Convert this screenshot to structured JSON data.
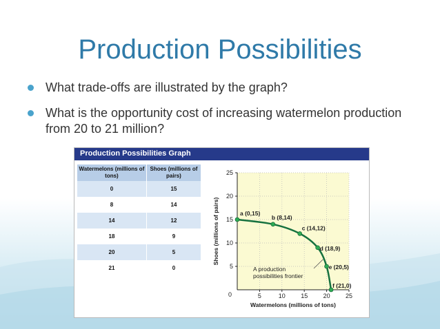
{
  "slide": {
    "title": "Production Possibilities",
    "bullets": [
      "What trade-offs are illustrated by the graph?",
      "What is the opportunity cost of increasing watermelon production from 20 to 21 million?"
    ]
  },
  "figure": {
    "header": "Production Possibilities Graph",
    "table": {
      "headers": [
        "Watermelons (millions of tons)",
        "Shoes (millions of pairs)"
      ],
      "rows": [
        [
          "0",
          "15"
        ],
        [
          "8",
          "14"
        ],
        [
          "14",
          "12"
        ],
        [
          "18",
          "9"
        ],
        [
          "20",
          "5"
        ],
        [
          "21",
          "0"
        ]
      ]
    }
  },
  "chart_data": {
    "type": "line",
    "xlabel": "Watermelons (millions of tons)",
    "ylabel": "Shoes (millions of pairs)",
    "xlim": [
      0,
      25
    ],
    "ylim": [
      0,
      25
    ],
    "xticks": [
      "5",
      "10",
      "15",
      "20",
      "25"
    ],
    "yticks": [
      "5",
      "10",
      "15",
      "20",
      "25"
    ],
    "origin_label": "0",
    "points": [
      {
        "label": "a (0,15)",
        "x": 0,
        "y": 15
      },
      {
        "label": "b (8,14)",
        "x": 8,
        "y": 14
      },
      {
        "label": "c (14,12)",
        "x": 14,
        "y": 12
      },
      {
        "label": "d (18,9)",
        "x": 18,
        "y": 9
      },
      {
        "label": "e (20,5)",
        "x": 20,
        "y": 5
      },
      {
        "label": "f (21,0)",
        "x": 21,
        "y": 0
      }
    ],
    "annotation": [
      "A production",
      "possibilities frontier"
    ],
    "colors": {
      "plot_bg": "#fbfad2",
      "line": "#16713f",
      "marker": "#2eab55",
      "grid": "#b8b8b8"
    }
  }
}
